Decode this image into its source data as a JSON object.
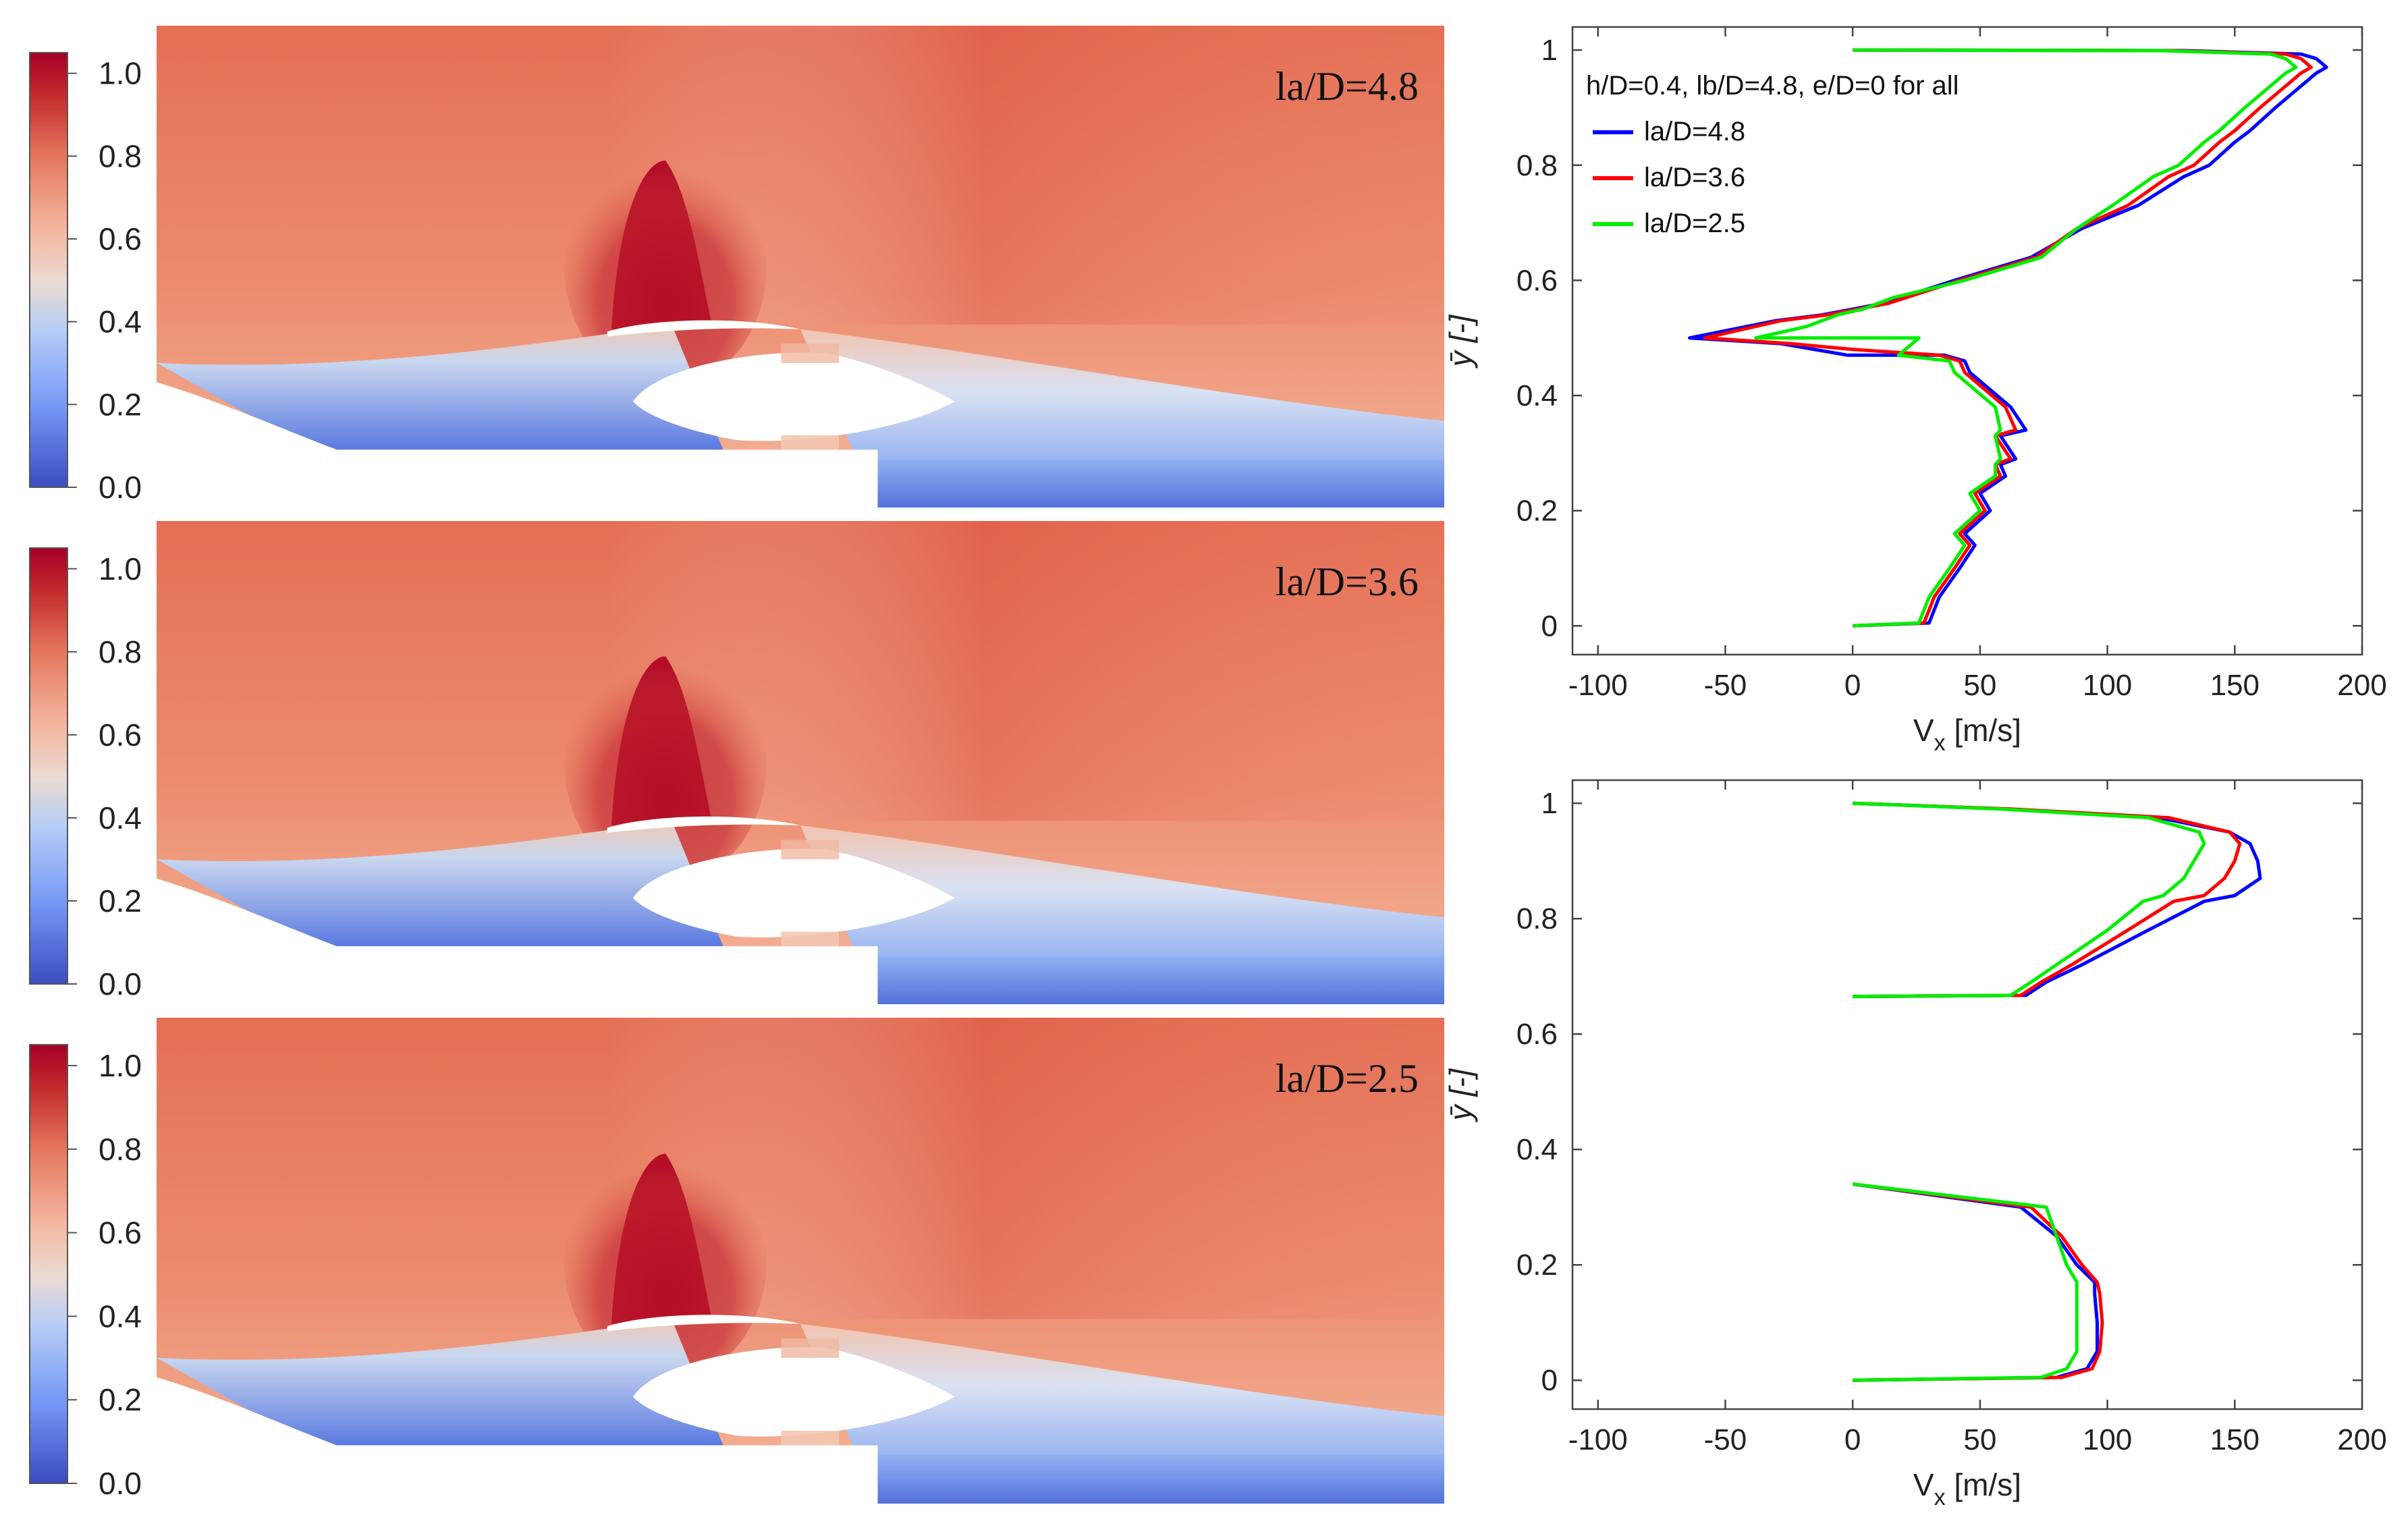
{
  "colorbar": {
    "ticks": [
      "1.0",
      "0.8",
      "0.6",
      "0.4",
      "0.2",
      "0.0"
    ],
    "tick_values": [
      1.0,
      0.8,
      0.6,
      0.4,
      0.2,
      0.0
    ],
    "vmin": 0.0,
    "vmax": 1.05,
    "colors": [
      "#3b4cc0",
      "#7396f5",
      "#b6cdf7",
      "#f2d8cd",
      "#f29b7b",
      "#de6a54",
      "#b40426",
      "#a50026"
    ]
  },
  "contour_panels": [
    {
      "label": "la/D=4.8"
    },
    {
      "label": "la/D=3.6"
    },
    {
      "label": "la/D=2.5"
    }
  ],
  "chart_data": [
    {
      "type": "line",
      "xlabel": "V",
      "xlabel_sub": "x",
      "xlabel_unit": " [m/s]",
      "ylabel": "ȳ [-]",
      "xlim": [
        -110,
        200
      ],
      "ylim": [
        -0.05,
        1.04
      ],
      "xticks": [
        -100,
        -50,
        0,
        50,
        100,
        150,
        200
      ],
      "yticks": [
        0,
        0.2,
        0.4,
        0.6,
        0.8,
        1
      ],
      "grid": false,
      "legend_placement": "top-left",
      "legend_title": "h/D=0.4, lb/D=4.8, e/D=0 for all",
      "series": [
        {
          "name": "la/D=4.8",
          "color": "#0000ff",
          "x": [
            0,
            30,
            34,
            42,
            48,
            44,
            54,
            50,
            60,
            58,
            64,
            58,
            68,
            62,
            46,
            44,
            36,
            -2,
            -28,
            -64,
            -30,
            -12,
            0,
            12,
            40,
            70,
            90,
            112,
            130,
            140,
            150,
            156,
            166,
            174,
            182,
            186,
            182,
            176,
            130,
            0
          ],
          "y": [
            0,
            0.005,
            0.05,
            0.1,
            0.14,
            0.16,
            0.2,
            0.23,
            0.26,
            0.28,
            0.29,
            0.33,
            0.34,
            0.38,
            0.44,
            0.46,
            0.47,
            0.47,
            0.49,
            0.5,
            0.53,
            0.54,
            0.55,
            0.56,
            0.6,
            0.64,
            0.69,
            0.73,
            0.78,
            0.8,
            0.84,
            0.86,
            0.9,
            0.93,
            0.96,
            0.97,
            0.985,
            0.993,
            0.999,
            1.0
          ]
        },
        {
          "name": "la/D=3.6",
          "color": "#ff0000",
          "x": [
            0,
            28,
            32,
            40,
            46,
            42,
            52,
            48,
            58,
            56,
            62,
            56,
            64,
            60,
            44,
            42,
            34,
            0,
            -24,
            -58,
            -28,
            -10,
            2,
            14,
            42,
            72,
            88,
            108,
            124,
            134,
            144,
            150,
            160,
            168,
            176,
            180,
            176,
            170,
            125,
            0
          ],
          "y": [
            0,
            0.005,
            0.05,
            0.1,
            0.14,
            0.16,
            0.2,
            0.23,
            0.26,
            0.28,
            0.29,
            0.33,
            0.34,
            0.38,
            0.44,
            0.46,
            0.47,
            0.48,
            0.49,
            0.5,
            0.53,
            0.54,
            0.55,
            0.56,
            0.6,
            0.64,
            0.69,
            0.73,
            0.78,
            0.8,
            0.84,
            0.86,
            0.9,
            0.93,
            0.96,
            0.97,
            0.985,
            0.993,
            0.999,
            1.0
          ]
        },
        {
          "name": "la/D=2.5",
          "color": "#00ee00",
          "x": [
            0,
            26,
            30,
            38,
            44,
            40,
            50,
            46,
            56,
            56,
            58,
            56,
            58,
            56,
            40,
            38,
            18,
            26,
            -2,
            -38,
            -18,
            -6,
            4,
            16,
            44,
            74,
            88,
            102,
            118,
            128,
            138,
            144,
            154,
            162,
            170,
            174,
            170,
            164,
            120,
            0
          ],
          "y": [
            0,
            0.005,
            0.05,
            0.1,
            0.14,
            0.16,
            0.2,
            0.23,
            0.26,
            0.28,
            0.29,
            0.33,
            0.34,
            0.38,
            0.44,
            0.46,
            0.47,
            0.5,
            0.5,
            0.5,
            0.52,
            0.54,
            0.55,
            0.57,
            0.6,
            0.64,
            0.69,
            0.73,
            0.78,
            0.8,
            0.84,
            0.86,
            0.9,
            0.93,
            0.96,
            0.97,
            0.985,
            0.993,
            0.999,
            1.0
          ]
        }
      ]
    },
    {
      "type": "line",
      "xlabel": "V",
      "xlabel_sub": "x",
      "xlabel_unit": " [m/s]",
      "ylabel": "ȳ [-]",
      "xlim": [
        -110,
        200
      ],
      "ylim": [
        -0.05,
        1.04
      ],
      "xticks": [
        -100,
        -50,
        0,
        50,
        100,
        150,
        200
      ],
      "yticks": [
        0,
        0.2,
        0.4,
        0.6,
        0.8,
        1
      ],
      "grid": false,
      "series": [
        {
          "name": "la/D=4.8",
          "color": "#0000ff",
          "x": [
            0,
            80,
            92,
            96,
            96,
            95,
            95,
            88,
            80,
            66,
            0
          ],
          "y": [
            0,
            0.005,
            0.02,
            0.05,
            0.1,
            0.15,
            0.17,
            0.2,
            0.25,
            0.3,
            0.34
          ],
          "x2": [
            0,
            68,
            76,
            90,
            116,
            138,
            150,
            160,
            159,
            156,
            148,
            120,
            60,
            0
          ],
          "y2": [
            0.665,
            0.667,
            0.69,
            0.72,
            0.78,
            0.83,
            0.84,
            0.87,
            0.9,
            0.93,
            0.95,
            0.975,
            0.99,
            1.0
          ]
        },
        {
          "name": "la/D=3.6",
          "color": "#ff0000",
          "x": [
            0,
            82,
            94,
            97,
            98,
            97,
            96,
            90,
            82,
            70,
            0
          ],
          "y": [
            0,
            0.005,
            0.02,
            0.05,
            0.1,
            0.15,
            0.17,
            0.2,
            0.25,
            0.3,
            0.34
          ],
          "x2": [
            0,
            66,
            74,
            86,
            108,
            126,
            138,
            146,
            150,
            152,
            148,
            124,
            62,
            0
          ],
          "y2": [
            0.665,
            0.667,
            0.69,
            0.72,
            0.78,
            0.83,
            0.84,
            0.87,
            0.9,
            0.93,
            0.95,
            0.975,
            0.99,
            1.0
          ]
        },
        {
          "name": "la/D=2.5",
          "color": "#00ee00",
          "x": [
            0,
            74,
            84,
            88,
            88,
            88,
            88,
            84,
            80,
            76,
            0
          ],
          "y": [
            0,
            0.005,
            0.02,
            0.05,
            0.1,
            0.15,
            0.17,
            0.2,
            0.25,
            0.3,
            0.34
          ],
          "x2": [
            0,
            62,
            70,
            80,
            100,
            114,
            122,
            130,
            134,
            138,
            136,
            116,
            58,
            0
          ],
          "y2": [
            0.665,
            0.667,
            0.69,
            0.72,
            0.78,
            0.83,
            0.84,
            0.87,
            0.9,
            0.93,
            0.95,
            0.975,
            0.99,
            1.0
          ]
        }
      ]
    }
  ]
}
